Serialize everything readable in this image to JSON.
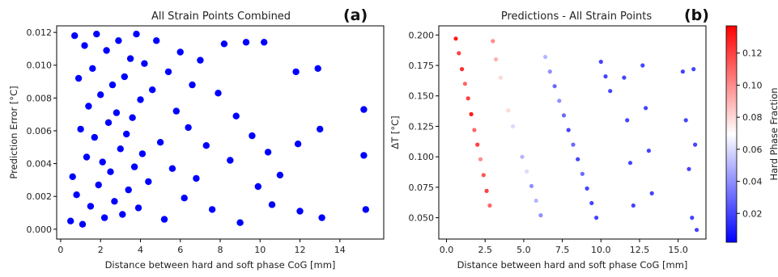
{
  "chart_data": [
    {
      "type": "scatter",
      "panel_label": "(a)",
      "title": "All Strain Points Combined",
      "xlabel": "Distance between hard and soft phase CoG [mm]",
      "ylabel": "Prediction Error [°C]",
      "xlim": [
        -0.2,
        16.2
      ],
      "ylim": [
        -0.0006,
        0.0124
      ],
      "xticks": [
        "0",
        "2",
        "4",
        "6",
        "8",
        "10",
        "12",
        "14"
      ],
      "yticks": [
        "0.000",
        "0.002",
        "0.004",
        "0.006",
        "0.008",
        "0.010",
        "0.012"
      ],
      "grid": false,
      "marker_color": "#0000ff",
      "series": [
        {
          "points": [
            [
              0.5,
              0.0005
            ],
            [
              0.6,
              0.0032
            ],
            [
              0.7,
              0.0118
            ],
            [
              0.8,
              0.0021
            ],
            [
              0.9,
              0.0092
            ],
            [
              1.0,
              0.0061
            ],
            [
              1.1,
              0.0003
            ],
            [
              1.2,
              0.0112
            ],
            [
              1.3,
              0.0044
            ],
            [
              1.4,
              0.0075
            ],
            [
              1.5,
              0.0014
            ],
            [
              1.6,
              0.0098
            ],
            [
              1.7,
              0.0056
            ],
            [
              1.8,
              0.0119
            ],
            [
              1.9,
              0.0027
            ],
            [
              2.0,
              0.0082
            ],
            [
              2.1,
              0.0041
            ],
            [
              2.2,
              0.0007
            ],
            [
              2.3,
              0.0109
            ],
            [
              2.4,
              0.0065
            ],
            [
              2.5,
              0.0035
            ],
            [
              2.6,
              0.0088
            ],
            [
              2.7,
              0.0017
            ],
            [
              2.8,
              0.0071
            ],
            [
              2.9,
              0.0115
            ],
            [
              3.0,
              0.0049
            ],
            [
              3.1,
              0.0009
            ],
            [
              3.2,
              0.0093
            ],
            [
              3.3,
              0.0058
            ],
            [
              3.4,
              0.0024
            ],
            [
              3.5,
              0.0104
            ],
            [
              3.6,
              0.0068
            ],
            [
              3.7,
              0.0038
            ],
            [
              3.8,
              0.0119
            ],
            [
              3.9,
              0.0013
            ],
            [
              4.0,
              0.0079
            ],
            [
              4.1,
              0.0046
            ],
            [
              4.2,
              0.0101
            ],
            [
              4.4,
              0.0029
            ],
            [
              4.6,
              0.0085
            ],
            [
              4.8,
              0.0115
            ],
            [
              5.0,
              0.0053
            ],
            [
              5.2,
              0.0006
            ],
            [
              5.4,
              0.0096
            ],
            [
              5.6,
              0.0037
            ],
            [
              5.8,
              0.0072
            ],
            [
              6.0,
              0.0108
            ],
            [
              6.2,
              0.0019
            ],
            [
              6.4,
              0.0062
            ],
            [
              6.6,
              0.0088
            ],
            [
              6.8,
              0.0031
            ],
            [
              7.0,
              0.0103
            ],
            [
              7.3,
              0.0051
            ],
            [
              7.6,
              0.0012
            ],
            [
              7.9,
              0.0083
            ],
            [
              8.2,
              0.0113
            ],
            [
              8.5,
              0.0042
            ],
            [
              8.8,
              0.0069
            ],
            [
              9.0,
              0.0004
            ],
            [
              9.3,
              0.0114
            ],
            [
              9.6,
              0.0057
            ],
            [
              9.9,
              0.0026
            ],
            [
              10.2,
              0.0114
            ],
            [
              10.4,
              0.0047
            ],
            [
              10.6,
              0.0015
            ],
            [
              11.0,
              0.0033
            ],
            [
              11.8,
              0.0096
            ],
            [
              11.9,
              0.0052
            ],
            [
              12.0,
              0.0011
            ],
            [
              12.9,
              0.0098
            ],
            [
              13.0,
              0.0061
            ],
            [
              13.1,
              0.0007
            ],
            [
              15.2,
              0.0073
            ],
            [
              15.2,
              0.0045
            ],
            [
              15.3,
              0.0012
            ]
          ]
        }
      ]
    },
    {
      "type": "scatter",
      "panel_label": "(b)",
      "title": "Predictions - All Strain Points",
      "xlabel": "Distance between hard and soft phase CoG [mm]",
      "ylabel": "ΔT [°C]",
      "xlim": [
        -0.5,
        16.8
      ],
      "ylim": [
        0.0325,
        0.2075
      ],
      "xticks": [
        "0.0",
        "2.5",
        "5.0",
        "7.5",
        "10.0",
        "12.5",
        "15.0"
      ],
      "yticks": [
        "0.050",
        "0.075",
        "0.100",
        "0.125",
        "0.150",
        "0.175",
        "0.200"
      ],
      "grid": false,
      "colorbar": {
        "label": "Hard Phase Fraction",
        "ticks": [
          "0.02",
          "0.04",
          "0.06",
          "0.08",
          "0.10",
          "0.12"
        ],
        "range": [
          0.002,
          0.137
        ],
        "colormap": [
          "#0000ff",
          "#ffffff",
          "#ff0000"
        ]
      },
      "series": [
        {
          "points": [
            [
              0.6,
              0.197,
              0.13
            ],
            [
              0.8,
              0.185,
              0.12
            ],
            [
              1.0,
              0.172,
              0.125
            ],
            [
              1.2,
              0.16,
              0.11
            ],
            [
              1.4,
              0.148,
              0.12
            ],
            [
              1.6,
              0.135,
              0.13
            ],
            [
              1.8,
              0.122,
              0.11
            ],
            [
              2.0,
              0.11,
              0.12
            ],
            [
              2.2,
              0.098,
              0.1
            ],
            [
              2.4,
              0.085,
              0.115
            ],
            [
              2.6,
              0.072,
              0.12
            ],
            [
              2.8,
              0.06,
              0.11
            ],
            [
              3.0,
              0.195,
              0.1
            ],
            [
              3.2,
              0.18,
              0.09
            ],
            [
              3.5,
              0.165,
              0.08
            ],
            [
              3.8,
              0.15,
              0.07
            ],
            [
              4.0,
              0.138,
              0.08
            ],
            [
              4.3,
              0.125,
              0.06
            ],
            [
              4.6,
              0.112,
              0.07
            ],
            [
              4.9,
              0.1,
              0.05
            ],
            [
              5.2,
              0.088,
              0.06
            ],
            [
              5.5,
              0.076,
              0.04
            ],
            [
              5.8,
              0.064,
              0.05
            ],
            [
              6.1,
              0.052,
              0.04
            ],
            [
              6.4,
              0.182,
              0.05
            ],
            [
              6.7,
              0.17,
              0.04
            ],
            [
              7.0,
              0.158,
              0.03
            ],
            [
              7.3,
              0.146,
              0.04
            ],
            [
              7.6,
              0.134,
              0.03
            ],
            [
              7.9,
              0.122,
              0.02
            ],
            [
              8.2,
              0.11,
              0.03
            ],
            [
              8.5,
              0.098,
              0.02
            ],
            [
              8.8,
              0.086,
              0.03
            ],
            [
              9.1,
              0.074,
              0.02
            ],
            [
              9.4,
              0.062,
              0.02
            ],
            [
              9.7,
              0.05,
              0.02
            ],
            [
              10.0,
              0.178,
              0.02
            ],
            [
              10.3,
              0.166,
              0.02
            ],
            [
              10.6,
              0.154,
              0.02
            ],
            [
              11.5,
              0.165,
              0.02
            ],
            [
              11.7,
              0.13,
              0.02
            ],
            [
              11.9,
              0.095,
              0.02
            ],
            [
              12.1,
              0.06,
              0.02
            ],
            [
              12.7,
              0.175,
              0.02
            ],
            [
              12.9,
              0.14,
              0.02
            ],
            [
              13.1,
              0.105,
              0.02
            ],
            [
              13.3,
              0.07,
              0.02
            ],
            [
              15.3,
              0.17,
              0.02
            ],
            [
              15.5,
              0.13,
              0.02
            ],
            [
              15.7,
              0.09,
              0.02
            ],
            [
              15.9,
              0.05,
              0.02
            ],
            [
              16.0,
              0.172,
              0.02
            ],
            [
              16.1,
              0.11,
              0.02
            ],
            [
              16.2,
              0.04,
              0.02
            ]
          ]
        }
      ]
    }
  ]
}
